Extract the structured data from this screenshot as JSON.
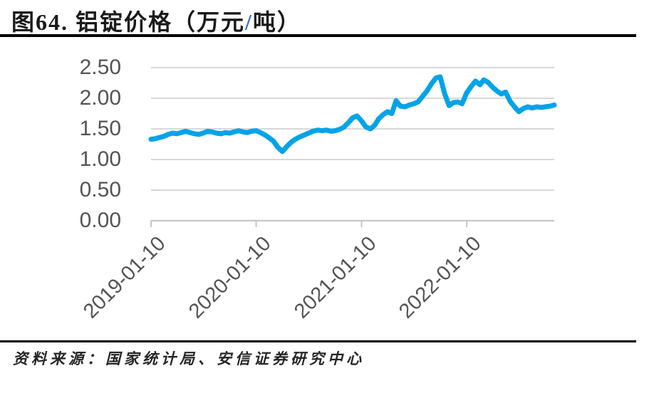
{
  "title": {
    "part1": "图64. 铝锭价格（万元",
    "slash": "/",
    "part2": "吨）"
  },
  "footer": {
    "source": "资料来源：国家统计局、安信证券研究中心"
  },
  "colors": {
    "line": "#00A3E8",
    "grid": "#d8d8d8",
    "axis": "#c6c6c6",
    "tick_label": "#545454",
    "title_slash": "#2F6FD0",
    "divider": "#000000"
  },
  "chart_data": {
    "type": "line",
    "title": "铝锭价格（万元/吨）",
    "xlabel": "",
    "ylabel": "",
    "ylim": [
      0,
      2.5
    ],
    "y_ticks": [
      "0.00",
      "0.50",
      "1.00",
      "1.50",
      "2.00",
      "2.50"
    ],
    "x_ticks": [
      "2019-01-10",
      "2020-01-10",
      "2021-01-10",
      "2022-01-10"
    ],
    "x_range": [
      "2019-01-10",
      "2022-11-10"
    ],
    "grid": "horizontal",
    "legend_position": "none",
    "series": [
      {
        "name": "铝锭价格",
        "color": "#00A3E8",
        "points": [
          [
            "2019-01-10",
            1.33
          ],
          [
            "2019-01-25",
            1.34
          ],
          [
            "2019-02-10",
            1.36
          ],
          [
            "2019-02-25",
            1.38
          ],
          [
            "2019-03-10",
            1.41
          ],
          [
            "2019-03-25",
            1.43
          ],
          [
            "2019-04-10",
            1.42
          ],
          [
            "2019-04-25",
            1.44
          ],
          [
            "2019-05-10",
            1.46
          ],
          [
            "2019-05-25",
            1.44
          ],
          [
            "2019-06-10",
            1.42
          ],
          [
            "2019-06-25",
            1.41
          ],
          [
            "2019-07-10",
            1.43
          ],
          [
            "2019-07-25",
            1.46
          ],
          [
            "2019-08-10",
            1.45
          ],
          [
            "2019-08-25",
            1.43
          ],
          [
            "2019-09-10",
            1.42
          ],
          [
            "2019-09-25",
            1.44
          ],
          [
            "2019-10-10",
            1.43
          ],
          [
            "2019-10-25",
            1.45
          ],
          [
            "2019-11-10",
            1.47
          ],
          [
            "2019-11-25",
            1.45
          ],
          [
            "2019-12-10",
            1.44
          ],
          [
            "2019-12-25",
            1.46
          ],
          [
            "2020-01-10",
            1.47
          ],
          [
            "2020-01-25",
            1.44
          ],
          [
            "2020-02-10",
            1.4
          ],
          [
            "2020-02-25",
            1.35
          ],
          [
            "2020-03-10",
            1.3
          ],
          [
            "2020-03-25",
            1.2
          ],
          [
            "2020-04-10",
            1.13
          ],
          [
            "2020-04-25",
            1.21
          ],
          [
            "2020-05-10",
            1.28
          ],
          [
            "2020-05-25",
            1.33
          ],
          [
            "2020-06-10",
            1.37
          ],
          [
            "2020-06-25",
            1.4
          ],
          [
            "2020-07-10",
            1.43
          ],
          [
            "2020-07-25",
            1.46
          ],
          [
            "2020-08-10",
            1.48
          ],
          [
            "2020-08-25",
            1.47
          ],
          [
            "2020-09-10",
            1.48
          ],
          [
            "2020-09-25",
            1.46
          ],
          [
            "2020-10-10",
            1.47
          ],
          [
            "2020-10-25",
            1.49
          ],
          [
            "2020-11-10",
            1.53
          ],
          [
            "2020-11-25",
            1.6
          ],
          [
            "2020-12-10",
            1.68
          ],
          [
            "2020-12-25",
            1.71
          ],
          [
            "2021-01-10",
            1.63
          ],
          [
            "2021-01-25",
            1.53
          ],
          [
            "2021-02-10",
            1.5
          ],
          [
            "2021-02-25",
            1.56
          ],
          [
            "2021-03-10",
            1.66
          ],
          [
            "2021-03-25",
            1.73
          ],
          [
            "2021-04-10",
            1.78
          ],
          [
            "2021-04-25",
            1.75
          ],
          [
            "2021-05-10",
            1.96
          ],
          [
            "2021-05-25",
            1.87
          ],
          [
            "2021-06-10",
            1.86
          ],
          [
            "2021-06-25",
            1.89
          ],
          [
            "2021-07-10",
            1.91
          ],
          [
            "2021-07-25",
            1.94
          ],
          [
            "2021-08-10",
            2.03
          ],
          [
            "2021-08-25",
            2.12
          ],
          [
            "2021-09-10",
            2.24
          ],
          [
            "2021-09-25",
            2.33
          ],
          [
            "2021-10-10",
            2.35
          ],
          [
            "2021-10-25",
            2.08
          ],
          [
            "2021-11-10",
            1.88
          ],
          [
            "2021-11-25",
            1.93
          ],
          [
            "2021-12-10",
            1.94
          ],
          [
            "2021-12-25",
            1.91
          ],
          [
            "2022-01-10",
            2.09
          ],
          [
            "2022-01-25",
            2.19
          ],
          [
            "2022-02-10",
            2.28
          ],
          [
            "2022-02-25",
            2.22
          ],
          [
            "2022-03-10",
            2.3
          ],
          [
            "2022-03-25",
            2.26
          ],
          [
            "2022-04-10",
            2.18
          ],
          [
            "2022-04-25",
            2.12
          ],
          [
            "2022-05-10",
            2.07
          ],
          [
            "2022-05-25",
            2.1
          ],
          [
            "2022-06-10",
            1.95
          ],
          [
            "2022-06-25",
            1.86
          ],
          [
            "2022-07-10",
            1.78
          ],
          [
            "2022-07-25",
            1.83
          ],
          [
            "2022-08-10",
            1.86
          ],
          [
            "2022-08-25",
            1.84
          ],
          [
            "2022-09-10",
            1.86
          ],
          [
            "2022-09-25",
            1.85
          ],
          [
            "2022-10-10",
            1.86
          ],
          [
            "2022-10-25",
            1.87
          ],
          [
            "2022-11-10",
            1.89
          ]
        ]
      }
    ]
  }
}
